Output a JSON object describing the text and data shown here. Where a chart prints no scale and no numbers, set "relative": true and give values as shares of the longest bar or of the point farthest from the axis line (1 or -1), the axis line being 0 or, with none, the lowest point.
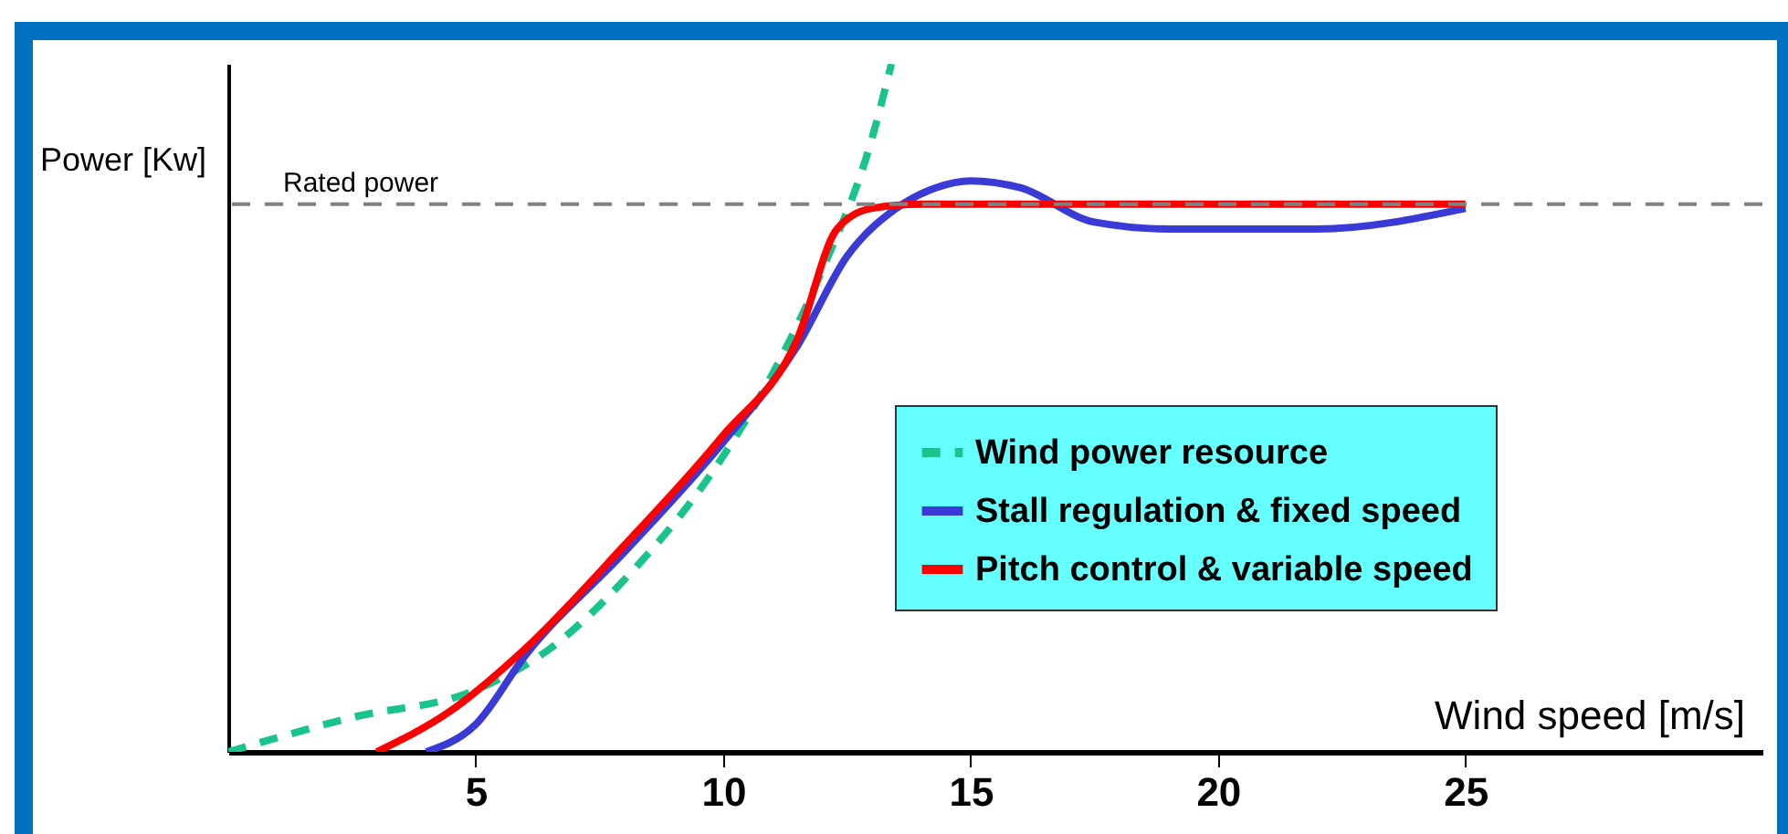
{
  "chart_data": {
    "type": "line",
    "relative": true,
    "xlabel": "Wind speed [m/s]",
    "ylabel": "Power [Kw]",
    "xlim": [
      0,
      31
    ],
    "xticks": [
      5,
      10,
      15,
      20,
      25
    ],
    "grid": false,
    "legend": "right",
    "tick_labels": "x",
    "ref_lines": [
      {
        "axis": "y",
        "value": 0.796,
        "label": "Rated power",
        "color": "#808080",
        "line_style": "dashed"
      }
    ],
    "series": [
      {
        "name": "Wind power resource",
        "color": "#19c48c",
        "line_style": "dashed",
        "x": [
          0,
          2.5,
          5,
          6.5,
          8,
          10,
          11,
          12,
          13,
          13.4
        ],
        "values": [
          0,
          0.05,
          0.09,
          0.15,
          0.25,
          0.43,
          0.55,
          0.7,
          0.89,
          1
        ]
      },
      {
        "name": "Stall regulation & fixed speed",
        "color": "#3a3ad6",
        "line_style": "solid",
        "x": [
          4,
          5,
          6,
          8,
          10,
          11.5,
          12.5,
          13.5,
          14.3,
          15,
          16,
          17.5,
          19,
          20,
          22,
          25
        ],
        "values": [
          0,
          0.04,
          0.14,
          0.29,
          0.45,
          0.59,
          0.72,
          0.79,
          0.82,
          0.83,
          0.82,
          0.77,
          0.76,
          0.76,
          0.76,
          0.79
        ]
      },
      {
        "name": "Pitch control & variable speed",
        "color": "#ff0000",
        "line_style": "solid",
        "x": [
          3,
          4.5,
          6,
          8,
          10,
          11.5,
          12.3,
          13,
          14,
          25
        ],
        "values": [
          0,
          0.06,
          0.15,
          0.3,
          0.46,
          0.6,
          0.76,
          0.79,
          0.796,
          0.796
        ]
      }
    ]
  }
}
